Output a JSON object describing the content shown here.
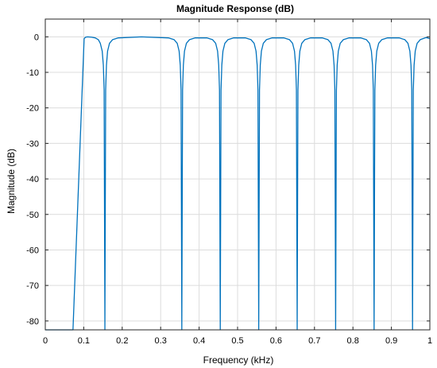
{
  "chart_data": {
    "type": "line",
    "title": "Magnitude Response (dB)",
    "xlabel": "Frequency (kHz)",
    "ylabel": "Magnitude (dB)",
    "xlim": [
      0,
      1
    ],
    "ylim": [
      -82.5,
      5
    ],
    "grid": true,
    "xticks": [
      0,
      0.1,
      0.2,
      0.3,
      0.4,
      0.5,
      0.6,
      0.7,
      0.8,
      0.9,
      1
    ],
    "xtick_labels": [
      "0",
      "0.1",
      "0.2",
      "0.3",
      "0.4",
      "0.5",
      "0.6",
      "0.7",
      "0.8",
      "0.9",
      "1"
    ],
    "yticks": [
      0,
      -10,
      -20,
      -30,
      -40,
      -50,
      -60,
      -70,
      -80
    ],
    "ytick_labels": [
      "0",
      "-10",
      "-20",
      "-30",
      "-40",
      "-50",
      "-60",
      "-70",
      "-80"
    ],
    "line_color": "#0072BD",
    "series": [
      {
        "x": [
          0,
          0.072,
          0.101,
          0.105,
          0.11,
          0.12,
          0.13,
          0.138,
          0.143,
          0.148,
          0.151,
          0.153,
          0.155,
          0.157,
          0.159,
          0.162,
          0.167,
          0.175,
          0.19,
          0.25,
          0.32,
          0.335,
          0.343,
          0.348,
          0.351,
          0.353,
          0.355,
          0.357,
          0.359,
          0.362,
          0.367,
          0.375,
          0.39,
          0.42,
          0.435,
          0.443,
          0.448,
          0.451,
          0.453,
          0.455,
          0.457,
          0.459,
          0.462,
          0.467,
          0.475,
          0.49,
          0.52,
          0.535,
          0.543,
          0.548,
          0.551,
          0.553,
          0.555,
          0.557,
          0.559,
          0.562,
          0.567,
          0.575,
          0.59,
          0.62,
          0.635,
          0.643,
          0.648,
          0.651,
          0.653,
          0.655,
          0.657,
          0.659,
          0.662,
          0.667,
          0.675,
          0.69,
          0.72,
          0.735,
          0.743,
          0.748,
          0.751,
          0.753,
          0.755,
          0.757,
          0.759,
          0.762,
          0.767,
          0.775,
          0.79,
          0.82,
          0.835,
          0.843,
          0.848,
          0.851,
          0.853,
          0.855,
          0.857,
          0.859,
          0.862,
          0.867,
          0.875,
          0.89,
          0.92,
          0.935,
          0.943,
          0.948,
          0.951,
          0.953,
          0.955,
          0.957,
          0.959,
          0.962,
          0.967,
          0.975,
          0.99,
          1
        ],
        "y": [
          -82.5,
          -82.5,
          -0.5,
          -0.1,
          0,
          -0.1,
          -0.3,
          -0.8,
          -1.8,
          -4,
          -8,
          -15,
          -82.5,
          -15,
          -8,
          -4,
          -1.8,
          -0.8,
          -0.3,
          0,
          -0.3,
          -0.8,
          -1.8,
          -4,
          -8,
          -15,
          -82.5,
          -15,
          -8,
          -4,
          -1.8,
          -0.8,
          -0.3,
          -0.3,
          -0.8,
          -1.8,
          -4,
          -8,
          -15,
          -82.5,
          -15,
          -8,
          -4,
          -1.8,
          -0.8,
          -0.3,
          -0.3,
          -0.8,
          -1.8,
          -4,
          -8,
          -15,
          -82.5,
          -15,
          -8,
          -4,
          -1.8,
          -0.8,
          -0.3,
          -0.3,
          -0.8,
          -1.8,
          -4,
          -8,
          -15,
          -82.5,
          -15,
          -8,
          -4,
          -1.8,
          -0.8,
          -0.3,
          -0.3,
          -0.8,
          -1.8,
          -4,
          -8,
          -15,
          -82.5,
          -15,
          -8,
          -4,
          -1.8,
          -0.8,
          -0.3,
          -0.3,
          -0.8,
          -1.8,
          -4,
          -8,
          -15,
          -82.5,
          -15,
          -8,
          -4,
          -1.8,
          -0.8,
          -0.3,
          -0.3,
          -0.8,
          -1.8,
          -4,
          -8,
          -15,
          -82.5,
          -15,
          -8,
          -4,
          -1.8,
          -0.8,
          -0.2,
          -0.5
        ]
      }
    ]
  }
}
